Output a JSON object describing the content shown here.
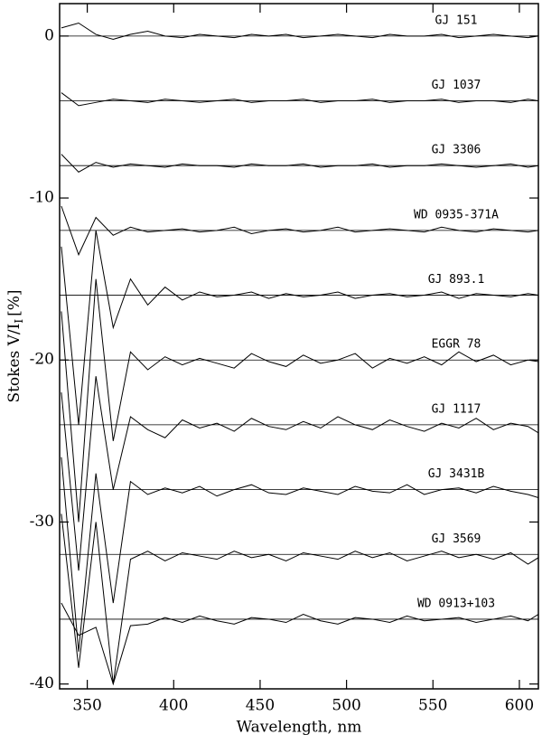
{
  "chart_data": {
    "type": "line",
    "xlabel": "Wavelength, nm",
    "ylabel": "Stokes V/I",
    "ylabel_sub": "I",
    "ylabel_unit": "[%]",
    "xlim": [
      334,
      611
    ],
    "ylim": [
      -40.3,
      2.0
    ],
    "xticks": [
      350,
      400,
      450,
      500,
      550,
      600
    ],
    "yticks": [
      -40,
      -30,
      -20,
      -10,
      0
    ],
    "x": [
      335,
      345,
      355,
      365,
      375,
      385,
      395,
      405,
      415,
      425,
      435,
      445,
      455,
      465,
      475,
      485,
      495,
      505,
      515,
      525,
      535,
      545,
      555,
      565,
      575,
      585,
      595,
      605,
      611
    ],
    "series": [
      {
        "name": "GJ 151",
        "color": "#000000",
        "offset": 0,
        "values": [
          0.5,
          0.8,
          0.1,
          -0.2,
          0.1,
          0.3,
          0.0,
          -0.1,
          0.1,
          0,
          -0.1,
          0.1,
          0,
          0.1,
          -0.1,
          0,
          0.1,
          0,
          -0.1,
          0.1,
          0,
          0,
          0.1,
          -0.1,
          0,
          0.1,
          0,
          -0.1,
          0
        ]
      },
      {
        "name": "GJ 1037",
        "color": "#000000",
        "offset": -4,
        "values": [
          -3.5,
          -4.3,
          -4.1,
          -3.9,
          -4.0,
          -4.1,
          -3.9,
          -4.0,
          -4.1,
          -4.0,
          -3.9,
          -4.1,
          -4.0,
          -4.0,
          -3.9,
          -4.1,
          -4.0,
          -4.0,
          -3.9,
          -4.1,
          -4.0,
          -4.0,
          -3.9,
          -4.1,
          -4.0,
          -4.0,
          -4.1,
          -3.9,
          -4.0
        ]
      },
      {
        "name": "GJ 3306",
        "color": "#000000",
        "offset": -8,
        "values": [
          -7.3,
          -8.4,
          -7.8,
          -8.1,
          -7.9,
          -8.0,
          -8.1,
          -7.9,
          -8.0,
          -8.0,
          -8.1,
          -7.9,
          -8.0,
          -8.0,
          -7.9,
          -8.1,
          -8.0,
          -8.0,
          -7.9,
          -8.1,
          -8.0,
          -8.0,
          -7.9,
          -8.0,
          -8.1,
          -8.0,
          -7.9,
          -8.1,
          -8.0
        ]
      },
      {
        "name": "WD 0935-371A",
        "color": "#000000",
        "offset": -12,
        "values": [
          -10.5,
          -13.5,
          -11.2,
          -12.3,
          -11.8,
          -12.1,
          -12.0,
          -11.9,
          -12.1,
          -12.0,
          -11.8,
          -12.2,
          -12.0,
          -11.9,
          -12.1,
          -12.0,
          -11.8,
          -12.1,
          -12.0,
          -11.9,
          -12.0,
          -12.1,
          -11.8,
          -12.0,
          -12.1,
          -11.9,
          -12.0,
          -12.1,
          -12.0
        ]
      },
      {
        "name": "GJ 893.1",
        "color": "#000000",
        "offset": -16,
        "values": [
          -13,
          -24,
          -12,
          -18,
          -15,
          -16.6,
          -15.5,
          -16.3,
          -15.8,
          -16.1,
          -16.0,
          -15.8,
          -16.2,
          -15.9,
          -16.1,
          -16.0,
          -15.8,
          -16.2,
          -16.0,
          -15.9,
          -16.1,
          -16.0,
          -15.8,
          -16.2,
          -15.9,
          -16.0,
          -16.1,
          -15.9,
          -16.0
        ]
      },
      {
        "name": "EGGR 78",
        "color": "#000000",
        "offset": -20,
        "values": [
          -17,
          -30,
          -15,
          -25,
          -19.5,
          -20.6,
          -19.8,
          -20.3,
          -19.9,
          -20.2,
          -20.5,
          -19.6,
          -20.1,
          -20.4,
          -19.7,
          -20.2,
          -20.0,
          -19.6,
          -20.5,
          -19.9,
          -20.2,
          -19.8,
          -20.3,
          -19.5,
          -20.1,
          -19.7,
          -20.3,
          -20.0,
          -20.1
        ]
      },
      {
        "name": "GJ 1117",
        "color": "#000000",
        "offset": -24,
        "values": [
          -22,
          -33,
          -21,
          -28,
          -23.5,
          -24.3,
          -24.8,
          -23.7,
          -24.2,
          -23.9,
          -24.4,
          -23.6,
          -24.1,
          -24.3,
          -23.8,
          -24.2,
          -23.5,
          -24.0,
          -24.3,
          -23.7,
          -24.1,
          -24.4,
          -23.9,
          -24.2,
          -23.6,
          -24.3,
          -23.9,
          -24.1,
          -24.5
        ]
      },
      {
        "name": "GJ 3431B",
        "color": "#000000",
        "offset": -28,
        "values": [
          -26,
          -38,
          -27,
          -35,
          -27.5,
          -28.3,
          -27.9,
          -28.2,
          -27.8,
          -28.4,
          -28.0,
          -27.7,
          -28.2,
          -28.3,
          -27.9,
          -28.1,
          -28.3,
          -27.8,
          -28.1,
          -28.2,
          -27.7,
          -28.3,
          -28.0,
          -27.9,
          -28.2,
          -27.8,
          -28.1,
          -28.3,
          -28.5
        ]
      },
      {
        "name": "GJ 3569",
        "color": "#000000",
        "offset": -32,
        "values": [
          -29.5,
          -39,
          -30,
          -40,
          -32.3,
          -31.8,
          -32.4,
          -31.9,
          -32.1,
          -32.3,
          -31.8,
          -32.2,
          -32.0,
          -32.4,
          -31.9,
          -32.1,
          -32.3,
          -31.8,
          -32.2,
          -31.9,
          -32.4,
          -32.1,
          -31.8,
          -32.2,
          -32.0,
          -32.3,
          -31.9,
          -32.6,
          -32.2
        ]
      },
      {
        "name": "WD 0913+103",
        "color": "#000000",
        "offset": -36,
        "values": [
          -35,
          -37,
          -36.5,
          -40,
          -36.4,
          -36.3,
          -35.9,
          -36.2,
          -35.8,
          -36.1,
          -36.3,
          -35.9,
          -36.0,
          -36.2,
          -35.7,
          -36.1,
          -36.3,
          -35.9,
          -36.0,
          -36.2,
          -35.8,
          -36.1,
          -36.0,
          -35.9,
          -36.2,
          -36.0,
          -35.8,
          -36.1,
          -35.7
        ]
      }
    ]
  }
}
